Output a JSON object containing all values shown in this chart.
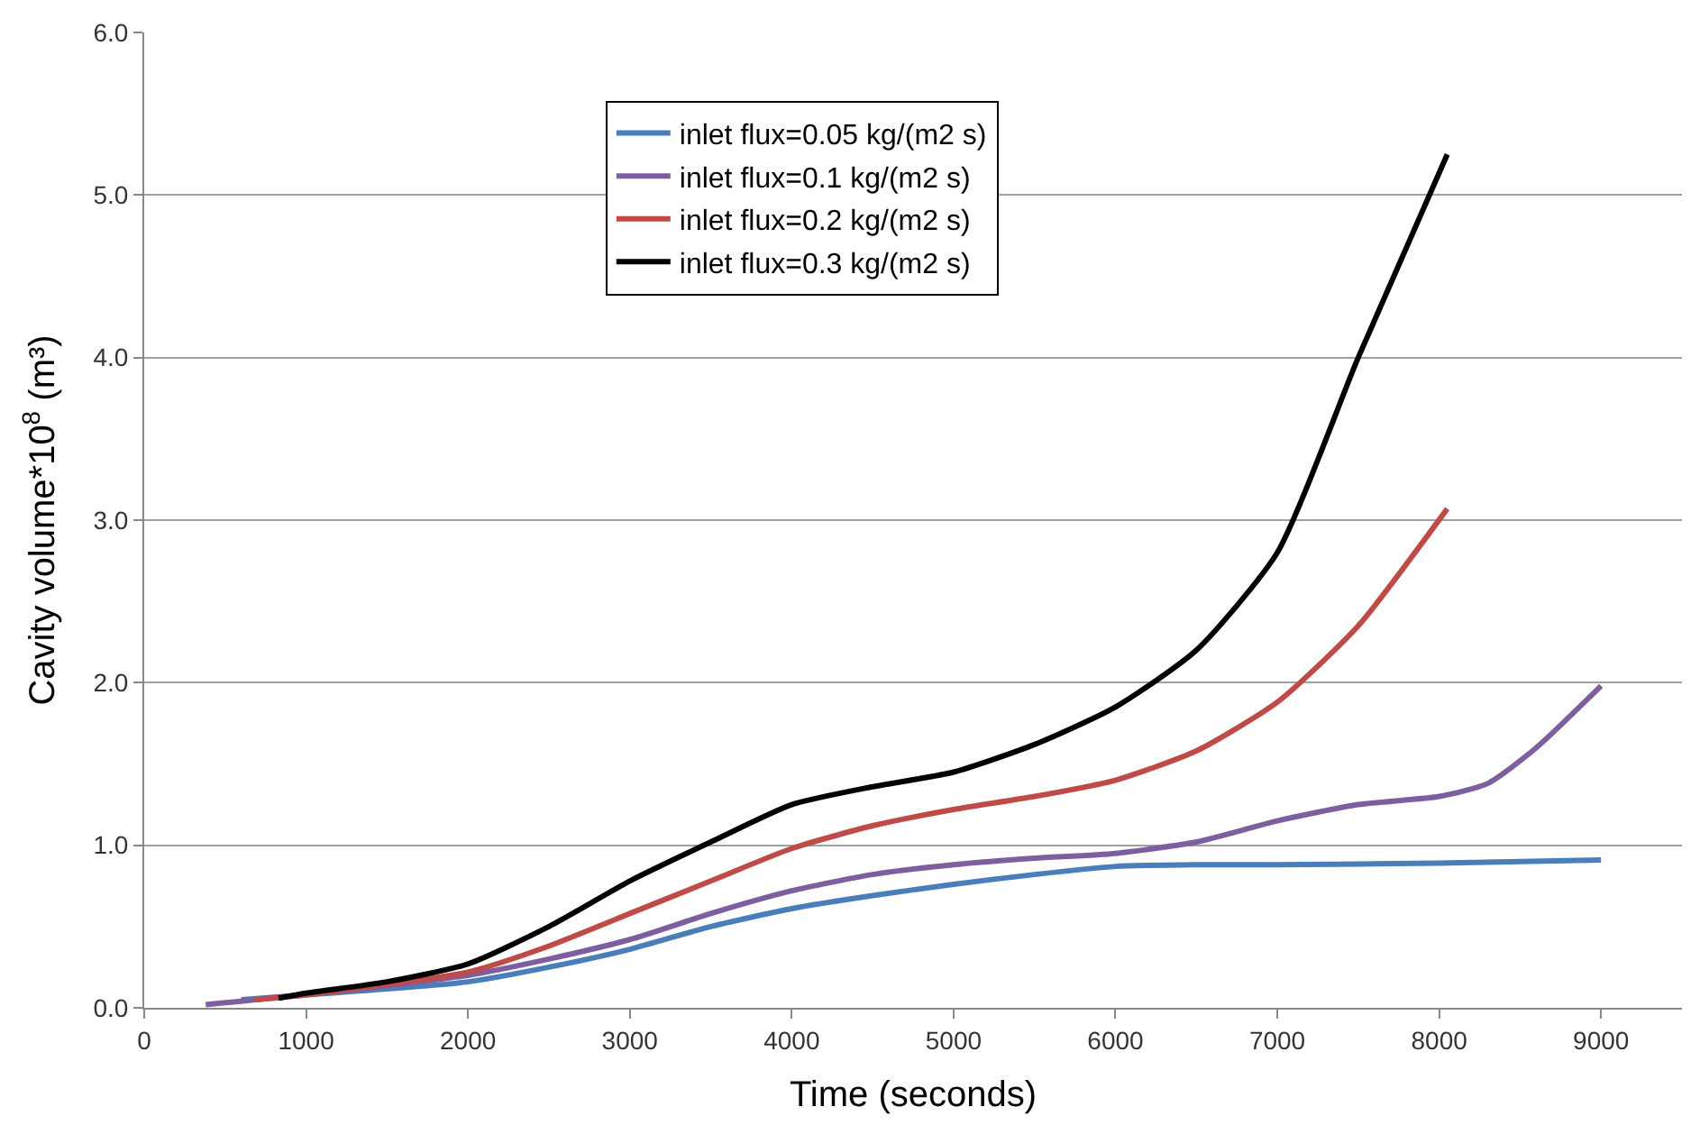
{
  "chart_data": {
    "type": "line",
    "xlabel": "Time (seconds)",
    "ylabel": "Cavity volume*10$^{8}$ (m³)",
    "xlim": [
      0,
      9500
    ],
    "xticks": [
      0,
      1000,
      2000,
      3000,
      4000,
      5000,
      6000,
      7000,
      8000,
      9000
    ],
    "ylim": [
      0,
      6
    ],
    "yticks": [
      {
        "value": 0,
        "label": "0.0"
      },
      {
        "value": 1,
        "label": "1.0"
      },
      {
        "value": 2,
        "label": "2.0"
      },
      {
        "value": 3,
        "label": "3.0"
      },
      {
        "value": 4,
        "label": "4.0"
      },
      {
        "value": 5,
        "label": "5.0"
      },
      {
        "value": 6,
        "label": "6.0"
      }
    ],
    "grid": "y",
    "legend": "top",
    "marker": "none",
    "line_style": "solid",
    "series": [
      {
        "name": "inlet flux=0.05 kg/(m2 s)",
        "color": "#4a7ebb",
        "x": [
          600,
          1000,
          2000,
          2500,
          3000,
          3500,
          4000,
          4500,
          5000,
          5500,
          6000,
          6500,
          7000,
          8000,
          9000
        ],
        "values": [
          0.05,
          0.08,
          0.16,
          0.25,
          0.36,
          0.5,
          0.61,
          0.69,
          0.76,
          0.82,
          0.87,
          0.88,
          0.88,
          0.89,
          0.91
        ]
      },
      {
        "name": "inlet flux=0.1 kg/(m2 s)",
        "color": "#7d5fa0",
        "x": [
          380,
          1000,
          2000,
          2500,
          3000,
          3500,
          4000,
          4500,
          5000,
          5500,
          6000,
          6500,
          7000,
          7500,
          8000,
          8300,
          8600,
          9000
        ],
        "values": [
          0.02,
          0.08,
          0.2,
          0.3,
          0.42,
          0.58,
          0.72,
          0.82,
          0.88,
          0.92,
          0.95,
          1.02,
          1.15,
          1.25,
          1.3,
          1.38,
          1.6,
          1.98
        ]
      },
      {
        "name": "inlet flux=0.2 kg/(m2 s)",
        "color": "#be4b48",
        "x": [
          690,
          1000,
          2000,
          2500,
          3000,
          3500,
          4000,
          4500,
          5000,
          5500,
          6000,
          6500,
          7000,
          7500,
          8050
        ],
        "values": [
          0.05,
          0.08,
          0.22,
          0.38,
          0.58,
          0.78,
          0.98,
          1.12,
          1.22,
          1.3,
          1.4,
          1.58,
          1.88,
          2.35,
          3.07
        ]
      },
      {
        "name": "inlet flux=0.3 kg/(m2 s)",
        "color": "#000000",
        "x": [
          830,
          1000,
          1500,
          2000,
          2500,
          3000,
          3500,
          4000,
          4500,
          5000,
          5500,
          6000,
          6500,
          7000,
          7500,
          8050
        ],
        "values": [
          0.06,
          0.09,
          0.16,
          0.27,
          0.5,
          0.78,
          1.02,
          1.25,
          1.36,
          1.45,
          1.62,
          1.85,
          2.2,
          2.8,
          4.0,
          5.25
        ]
      }
    ]
  }
}
